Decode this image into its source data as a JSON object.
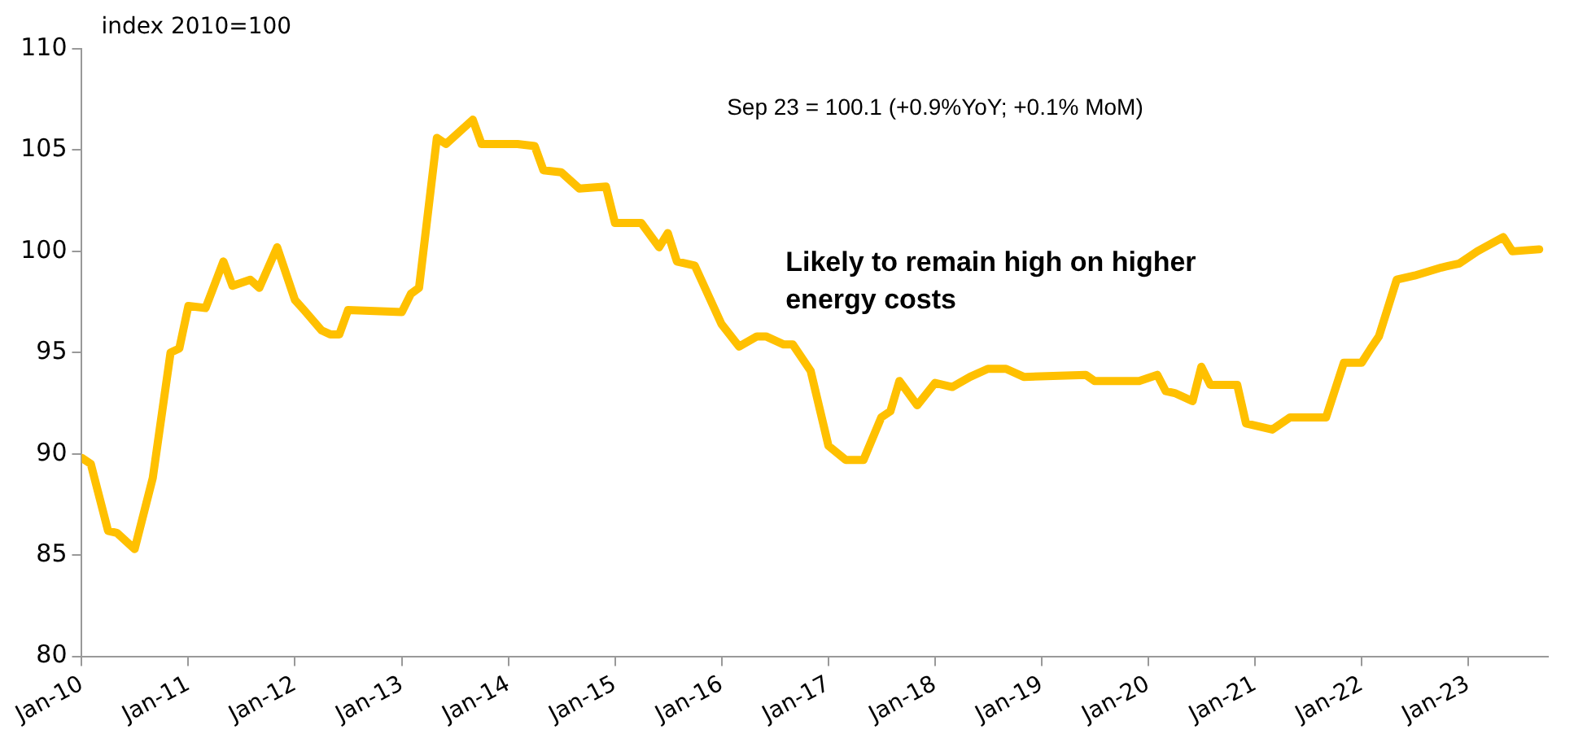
{
  "chart_data": {
    "type": "line",
    "ylabel": "index 2010=100",
    "annotations": [
      "Sep 23 = 100.1 (+0.9%YoY; +0.1% MoM)",
      "Likely to remain high on higher energy costs"
    ],
    "x": [
      "2010-01",
      "2010-02",
      "2010-04",
      "2010-05",
      "2010-07",
      "2010-09",
      "2010-11",
      "2010-12",
      "2011-01",
      "2011-03",
      "2011-05",
      "2011-06",
      "2011-08",
      "2011-09",
      "2011-11",
      "2012-01",
      "2012-02",
      "2012-04",
      "2012-05",
      "2012-06",
      "2012-07",
      "2013-01",
      "2013-02",
      "2013-03",
      "2013-05",
      "2013-06",
      "2013-09",
      "2013-10",
      "2014-02",
      "2014-04",
      "2014-05",
      "2014-07",
      "2014-09",
      "2014-12",
      "2015-01",
      "2015-04",
      "2015-06",
      "2015-07",
      "2015-08",
      "2015-10",
      "2016-01",
      "2016-03",
      "2016-05",
      "2016-06",
      "2016-08",
      "2016-09",
      "2016-11",
      "2017-01",
      "2017-03",
      "2017-05",
      "2017-07",
      "2017-08",
      "2017-09",
      "2017-11",
      "2018-01",
      "2018-03",
      "2018-05",
      "2018-07",
      "2018-09",
      "2018-11",
      "2019-06",
      "2019-07",
      "2019-12",
      "2020-02",
      "2020-03",
      "2020-04",
      "2020-06",
      "2020-07",
      "2020-08",
      "2020-11",
      "2020-12",
      "2021-03",
      "2021-05",
      "2021-09",
      "2021-11",
      "2022-01",
      "2022-02",
      "2022-03",
      "2022-05",
      "2022-07",
      "2022-10",
      "2022-12",
      "2023-02",
      "2023-05",
      "2023-06",
      "2023-09"
    ],
    "series": [
      {
        "color": "#ffc000",
        "values": [
          89.8,
          89.5,
          86.2,
          86.1,
          85.3,
          88.8,
          95.0,
          95.2,
          97.3,
          97.2,
          99.5,
          98.3,
          98.6,
          98.2,
          100.2,
          97.6,
          97.1,
          96.1,
          95.9,
          95.9,
          97.1,
          97.0,
          97.9,
          98.2,
          105.6,
          105.3,
          106.5,
          105.3,
          105.3,
          105.2,
          104.0,
          103.9,
          103.1,
          103.2,
          101.4,
          101.4,
          100.2,
          100.9,
          99.5,
          99.3,
          96.4,
          95.3,
          95.8,
          95.8,
          95.4,
          95.4,
          94.1,
          90.4,
          89.7,
          89.7,
          91.8,
          92.1,
          93.6,
          92.4,
          93.5,
          93.3,
          93.8,
          94.2,
          94.2,
          93.8,
          93.9,
          93.6,
          93.6,
          93.9,
          93.1,
          93.0,
          92.6,
          94.3,
          93.4,
          93.4,
          91.5,
          91.2,
          91.8,
          91.8,
          94.5,
          94.5,
          95.2,
          95.8,
          98.6,
          98.8,
          99.2,
          99.4,
          100.0,
          100.7,
          100.0,
          100.1
        ]
      }
    ],
    "xlim": [
      "2010-01",
      "2023-10"
    ],
    "xticks": [
      {
        "value": "2010-01",
        "label": "Jan-10"
      },
      {
        "value": "2011-01",
        "label": "Jan-11"
      },
      {
        "value": "2012-01",
        "label": "Jan-12"
      },
      {
        "value": "2013-01",
        "label": "Jan-13"
      },
      {
        "value": "2014-01",
        "label": "Jan-14"
      },
      {
        "value": "2015-01",
        "label": "Jan-15"
      },
      {
        "value": "2016-01",
        "label": "Jan-16"
      },
      {
        "value": "2017-01",
        "label": "Jan-17"
      },
      {
        "value": "2018-01",
        "label": "Jan-18"
      },
      {
        "value": "2019-01",
        "label": "Jan-19"
      },
      {
        "value": "2020-01",
        "label": "Jan-20"
      },
      {
        "value": "2021-01",
        "label": "Jan-21"
      },
      {
        "value": "2022-01",
        "label": "Jan-22"
      },
      {
        "value": "2023-01",
        "label": "Jan-23"
      }
    ],
    "ylim": [
      80,
      110
    ],
    "yticks": [
      80,
      85,
      90,
      95,
      100,
      105,
      110
    ],
    "legend": false,
    "marker": "none",
    "line_style": "solid"
  }
}
